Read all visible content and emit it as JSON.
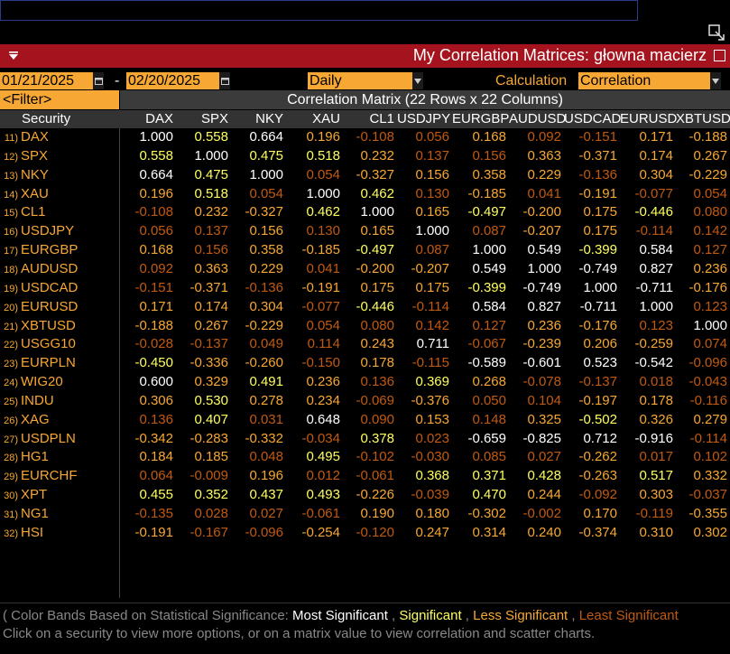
{
  "command_line": {
    "value": ""
  },
  "title": "My Correlation Matrices: głowna macierz",
  "controls": {
    "start_date": "01/21/2025",
    "date_separator": "-",
    "end_date": "02/20/2025",
    "periodicity": "Daily",
    "calculation_label": "Calculation",
    "calculation_value": "Correlation",
    "filter_label": "<Filter>"
  },
  "matrix_title": "Correlation Matrix (22 Rows x 22 Columns)",
  "security_header": "Security",
  "columns": [
    "DAX",
    "SPX",
    "NKY",
    "XAU",
    "CL1",
    "USDJPY",
    "EURGBP",
    "AUDUSD",
    "USDCAD",
    "EURUSD",
    "XBTUSD"
  ],
  "rows": [
    {
      "num": "11)",
      "sym": "DAX",
      "vals": [
        "1.000",
        "0.558",
        "0.664",
        "0.196",
        "-0.108",
        "0.056",
        "0.168",
        "0.092",
        "-0.151",
        "0.171",
        "-0.188"
      ],
      "lvl": [
        3,
        2,
        3,
        1,
        0,
        0,
        1,
        0,
        0,
        1,
        1
      ]
    },
    {
      "num": "12)",
      "sym": "SPX",
      "vals": [
        "0.558",
        "1.000",
        "0.475",
        "0.518",
        "0.232",
        "0.137",
        "0.156",
        "0.363",
        "-0.371",
        "0.174",
        "0.267"
      ],
      "lvl": [
        2,
        3,
        2,
        2,
        1,
        0,
        0,
        1,
        1,
        1,
        1
      ]
    },
    {
      "num": "13)",
      "sym": "NKY",
      "vals": [
        "0.664",
        "0.475",
        "1.000",
        "0.054",
        "-0.327",
        "0.156",
        "0.358",
        "0.229",
        "-0.136",
        "0.304",
        "-0.229"
      ],
      "lvl": [
        3,
        2,
        3,
        0,
        1,
        1,
        1,
        1,
        0,
        1,
        1
      ]
    },
    {
      "num": "14)",
      "sym": "XAU",
      "vals": [
        "0.196",
        "0.518",
        "0.054",
        "1.000",
        "0.462",
        "0.130",
        "-0.185",
        "0.041",
        "-0.191",
        "-0.077",
        "0.054"
      ],
      "lvl": [
        1,
        2,
        0,
        3,
        2,
        0,
        1,
        0,
        1,
        0,
        0
      ]
    },
    {
      "num": "15)",
      "sym": "CL1",
      "vals": [
        "-0.108",
        "0.232",
        "-0.327",
        "0.462",
        "1.000",
        "0.165",
        "-0.497",
        "-0.200",
        "0.175",
        "-0.446",
        "0.080"
      ],
      "lvl": [
        0,
        1,
        1,
        2,
        3,
        1,
        2,
        1,
        1,
        2,
        0
      ]
    },
    {
      "num": "16)",
      "sym": "USDJPY",
      "vals": [
        "0.056",
        "0.137",
        "0.156",
        "0.130",
        "0.165",
        "1.000",
        "0.087",
        "-0.207",
        "0.175",
        "-0.114",
        "0.142"
      ],
      "lvl": [
        0,
        0,
        1,
        0,
        1,
        3,
        0,
        1,
        1,
        0,
        0
      ]
    },
    {
      "num": "17)",
      "sym": "EURGBP",
      "vals": [
        "0.168",
        "0.156",
        "0.358",
        "-0.185",
        "-0.497",
        "0.087",
        "1.000",
        "0.549",
        "-0.399",
        "0.584",
        "0.127"
      ],
      "lvl": [
        1,
        0,
        1,
        1,
        2,
        0,
        3,
        3,
        2,
        3,
        0
      ]
    },
    {
      "num": "18)",
      "sym": "AUDUSD",
      "vals": [
        "0.092",
        "0.363",
        "0.229",
        "0.041",
        "-0.200",
        "-0.207",
        "0.549",
        "1.000",
        "-0.749",
        "0.827",
        "0.236"
      ],
      "lvl": [
        0,
        1,
        1,
        0,
        1,
        1,
        3,
        3,
        3,
        3,
        1
      ]
    },
    {
      "num": "19)",
      "sym": "USDCAD",
      "vals": [
        "-0.151",
        "-0.371",
        "-0.136",
        "-0.191",
        "0.175",
        "0.175",
        "-0.399",
        "-0.749",
        "1.000",
        "-0.711",
        "-0.176"
      ],
      "lvl": [
        0,
        1,
        0,
        1,
        1,
        1,
        2,
        3,
        3,
        3,
        1
      ]
    },
    {
      "num": "20)",
      "sym": "EURUSD",
      "vals": [
        "0.171",
        "0.174",
        "0.304",
        "-0.077",
        "-0.446",
        "-0.114",
        "0.584",
        "0.827",
        "-0.711",
        "1.000",
        "0.123"
      ],
      "lvl": [
        1,
        1,
        1,
        0,
        2,
        0,
        3,
        3,
        3,
        3,
        0
      ]
    },
    {
      "num": "21)",
      "sym": "XBTUSD",
      "vals": [
        "-0.188",
        "0.267",
        "-0.229",
        "0.054",
        "0.080",
        "0.142",
        "0.127",
        "0.236",
        "-0.176",
        "0.123",
        "1.000"
      ],
      "lvl": [
        1,
        1,
        1,
        0,
        0,
        0,
        0,
        1,
        1,
        0,
        3
      ]
    },
    {
      "num": "22)",
      "sym": "USGG10",
      "vals": [
        "-0.028",
        "-0.137",
        "0.049",
        "0.114",
        "0.243",
        "0.711",
        "-0.067",
        "-0.239",
        "0.206",
        "-0.259",
        "0.074"
      ],
      "lvl": [
        0,
        0,
        0,
        0,
        1,
        3,
        0,
        1,
        1,
        1,
        0
      ]
    },
    {
      "num": "23)",
      "sym": "EURPLN",
      "vals": [
        "-0.450",
        "-0.336",
        "-0.260",
        "-0.150",
        "0.178",
        "-0.115",
        "-0.589",
        "-0.601",
        "0.523",
        "-0.542",
        "-0.096"
      ],
      "lvl": [
        2,
        1,
        1,
        0,
        1,
        0,
        3,
        3,
        3,
        3,
        0
      ]
    },
    {
      "num": "24)",
      "sym": "WIG20",
      "vals": [
        "0.600",
        "0.329",
        "0.491",
        "0.236",
        "0.136",
        "0.369",
        "0.268",
        "-0.078",
        "-0.137",
        "0.018",
        "-0.043"
      ],
      "lvl": [
        3,
        1,
        2,
        1,
        0,
        2,
        1,
        0,
        0,
        0,
        0
      ]
    },
    {
      "num": "25)",
      "sym": "INDU",
      "vals": [
        "0.306",
        "0.530",
        "0.278",
        "0.234",
        "-0.069",
        "-0.376",
        "0.050",
        "0.104",
        "-0.197",
        "0.178",
        "-0.116"
      ],
      "lvl": [
        1,
        2,
        1,
        1,
        0,
        1,
        0,
        0,
        1,
        1,
        0
      ]
    },
    {
      "num": "26)",
      "sym": "XAG",
      "vals": [
        "0.136",
        "0.407",
        "0.031",
        "0.648",
        "0.090",
        "0.153",
        "0.148",
        "0.325",
        "-0.502",
        "0.326",
        "0.279"
      ],
      "lvl": [
        0,
        2,
        0,
        3,
        0,
        1,
        0,
        1,
        2,
        1,
        1
      ]
    },
    {
      "num": "27)",
      "sym": "USDPLN",
      "vals": [
        "-0.342",
        "-0.283",
        "-0.332",
        "-0.034",
        "0.378",
        "0.023",
        "-0.659",
        "-0.825",
        "0.712",
        "-0.916",
        "-0.114"
      ],
      "lvl": [
        1,
        1,
        1,
        0,
        2,
        0,
        3,
        3,
        3,
        3,
        0
      ]
    },
    {
      "num": "28)",
      "sym": "HG1",
      "vals": [
        "0.184",
        "0.185",
        "0.048",
        "0.495",
        "-0.102",
        "-0.030",
        "0.085",
        "0.027",
        "-0.262",
        "0.017",
        "0.102"
      ],
      "lvl": [
        1,
        1,
        0,
        2,
        0,
        0,
        0,
        0,
        1,
        0,
        0
      ]
    },
    {
      "num": "29)",
      "sym": "EURCHF",
      "vals": [
        "0.064",
        "-0.009",
        "0.196",
        "0.012",
        "-0.061",
        "0.368",
        "0.371",
        "0.428",
        "-0.263",
        "0.517",
        "0.332"
      ],
      "lvl": [
        0,
        0,
        1,
        0,
        0,
        2,
        2,
        2,
        1,
        2,
        1
      ]
    },
    {
      "num": "30)",
      "sym": "XPT",
      "vals": [
        "0.455",
        "0.352",
        "0.437",
        "0.493",
        "-0.226",
        "-0.039",
        "0.470",
        "0.244",
        "-0.092",
        "0.303",
        "-0.037"
      ],
      "lvl": [
        2,
        2,
        2,
        2,
        1,
        0,
        2,
        1,
        0,
        1,
        0
      ]
    },
    {
      "num": "31)",
      "sym": "NG1",
      "vals": [
        "-0.135",
        "0.028",
        "0.027",
        "-0.061",
        "0.190",
        "0.180",
        "-0.302",
        "-0.002",
        "0.170",
        "-0.119",
        "-0.355"
      ],
      "lvl": [
        0,
        0,
        0,
        0,
        1,
        1,
        1,
        0,
        1,
        0,
        1
      ]
    },
    {
      "num": "32)",
      "sym": "HSI",
      "vals": [
        "-0.191",
        "-0.167",
        "-0.096",
        "-0.254",
        "-0.120",
        "0.247",
        "0.314",
        "0.240",
        "-0.374",
        "0.310",
        "0.302"
      ],
      "lvl": [
        1,
        0,
        0,
        1,
        0,
        1,
        1,
        1,
        1,
        1,
        1
      ]
    }
  ],
  "level_colors": [
    "#c05a10",
    "#f7a733",
    "#ffff60",
    "#ffffff"
  ],
  "footer": {
    "prefix": "( Color Bands Based on Statistical Significance: ",
    "most": "Most Significant",
    "sep1": " , ",
    "significant": "Significant",
    "sep2": " , ",
    "less": "Less Significant",
    "sep3": " , ",
    "least": "Least Significant",
    "line2": "Click on a security to view more options, or on a matrix value to view correlation and scatter charts."
  },
  "icons": {
    "menu": "menu-triangle-icon",
    "popout": "popout-window-icon",
    "close": "close-box-icon",
    "calendar": "calendar-icon",
    "dropdown": "dropdown-arrow-icon"
  }
}
